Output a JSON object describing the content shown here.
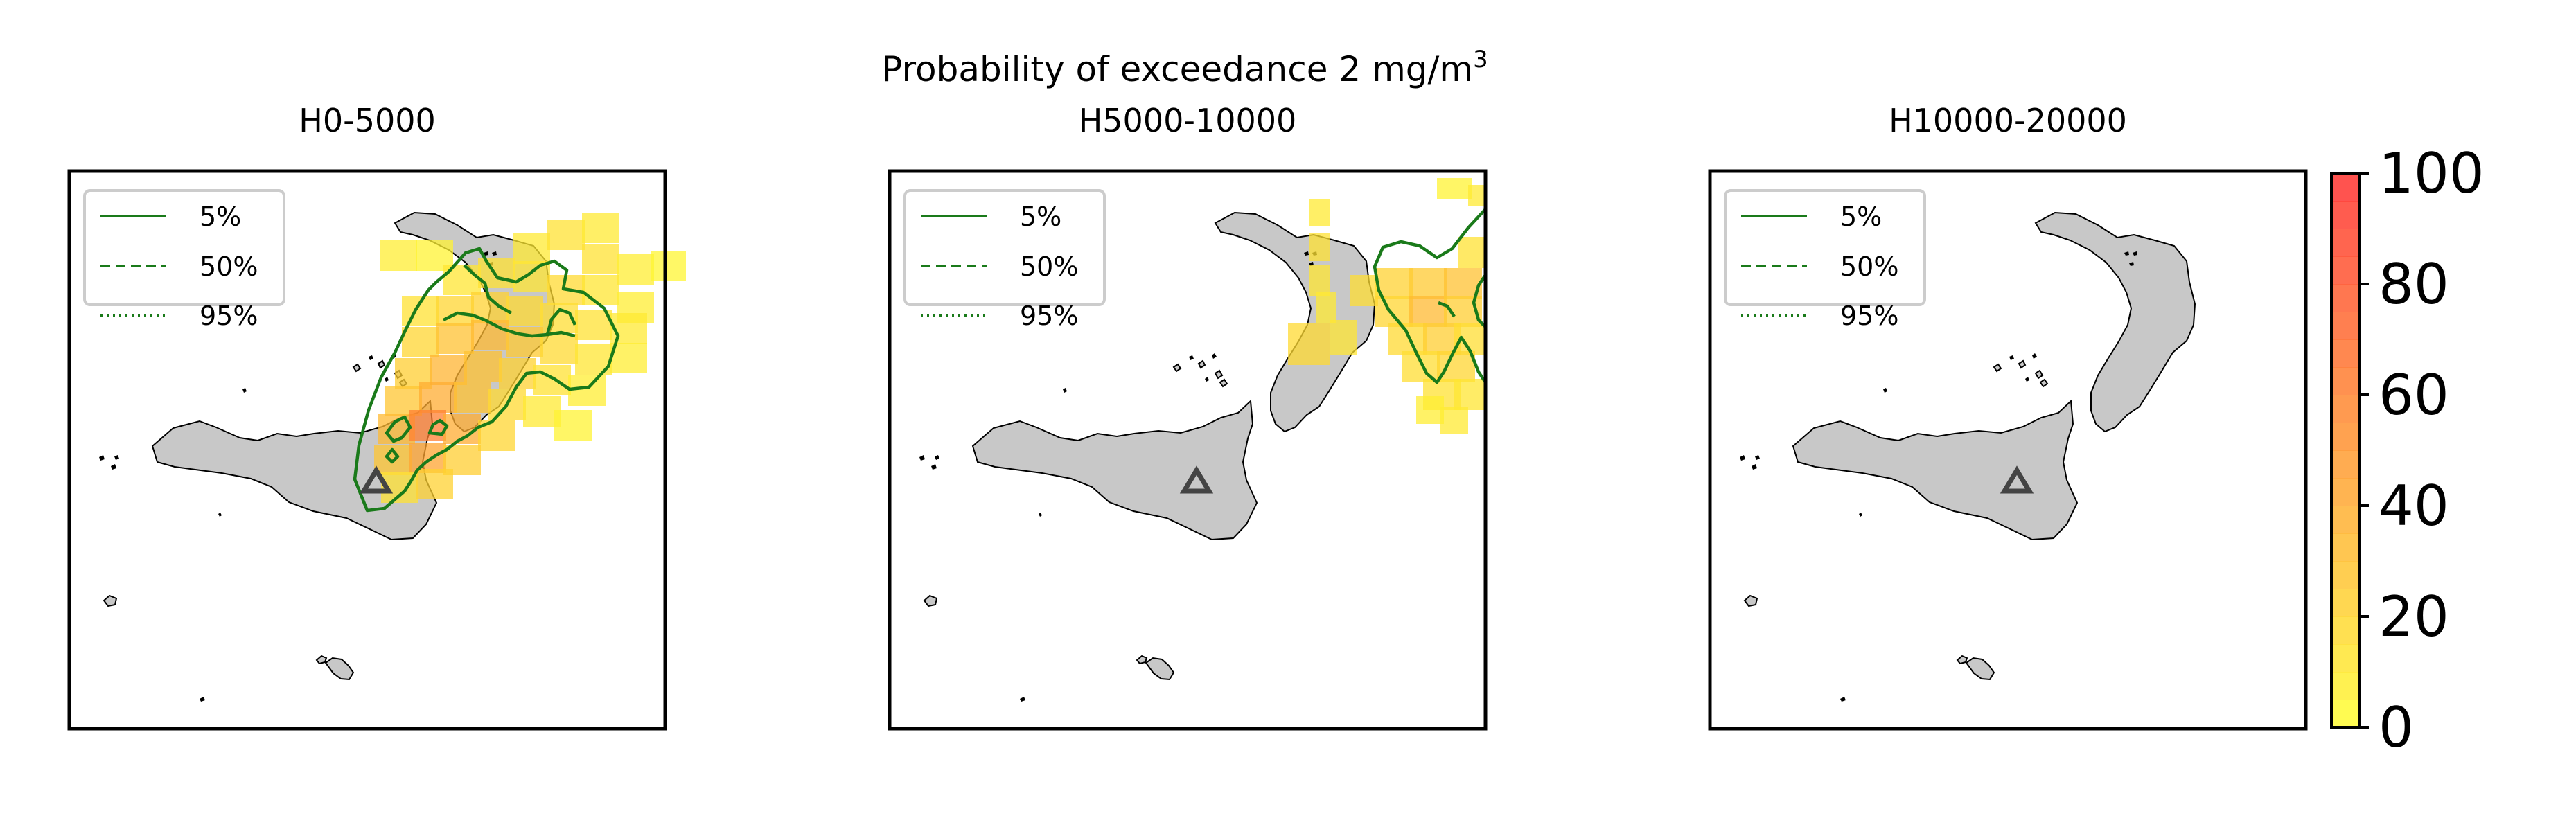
{
  "figure": {
    "suptitle_main": "Probability of exceedance 2 mg/m",
    "suptitle_sup": "3"
  },
  "panels": [
    {
      "title": "H0-5000"
    },
    {
      "title": "H5000-10000"
    },
    {
      "title": "H10000-20000"
    }
  ],
  "legend": {
    "entries": [
      {
        "label": "5%",
        "style": "solid"
      },
      {
        "label": "50%",
        "style": "dashed"
      },
      {
        "label": "95%",
        "style": "dotted"
      }
    ]
  },
  "colorbar": {
    "ticks": [
      "0",
      "20",
      "40",
      "60",
      "80",
      "100"
    ],
    "min": 0,
    "max": 100,
    "levels": 20,
    "colors": {
      "low": "#ffff33",
      "high": "#ff3030"
    }
  },
  "colors": {
    "land": "#c8c8c8",
    "contour": "#1a7a1a",
    "volcano_marker": "#444444"
  },
  "icons": {
    "volcano_marker": "triangle-icon"
  }
}
